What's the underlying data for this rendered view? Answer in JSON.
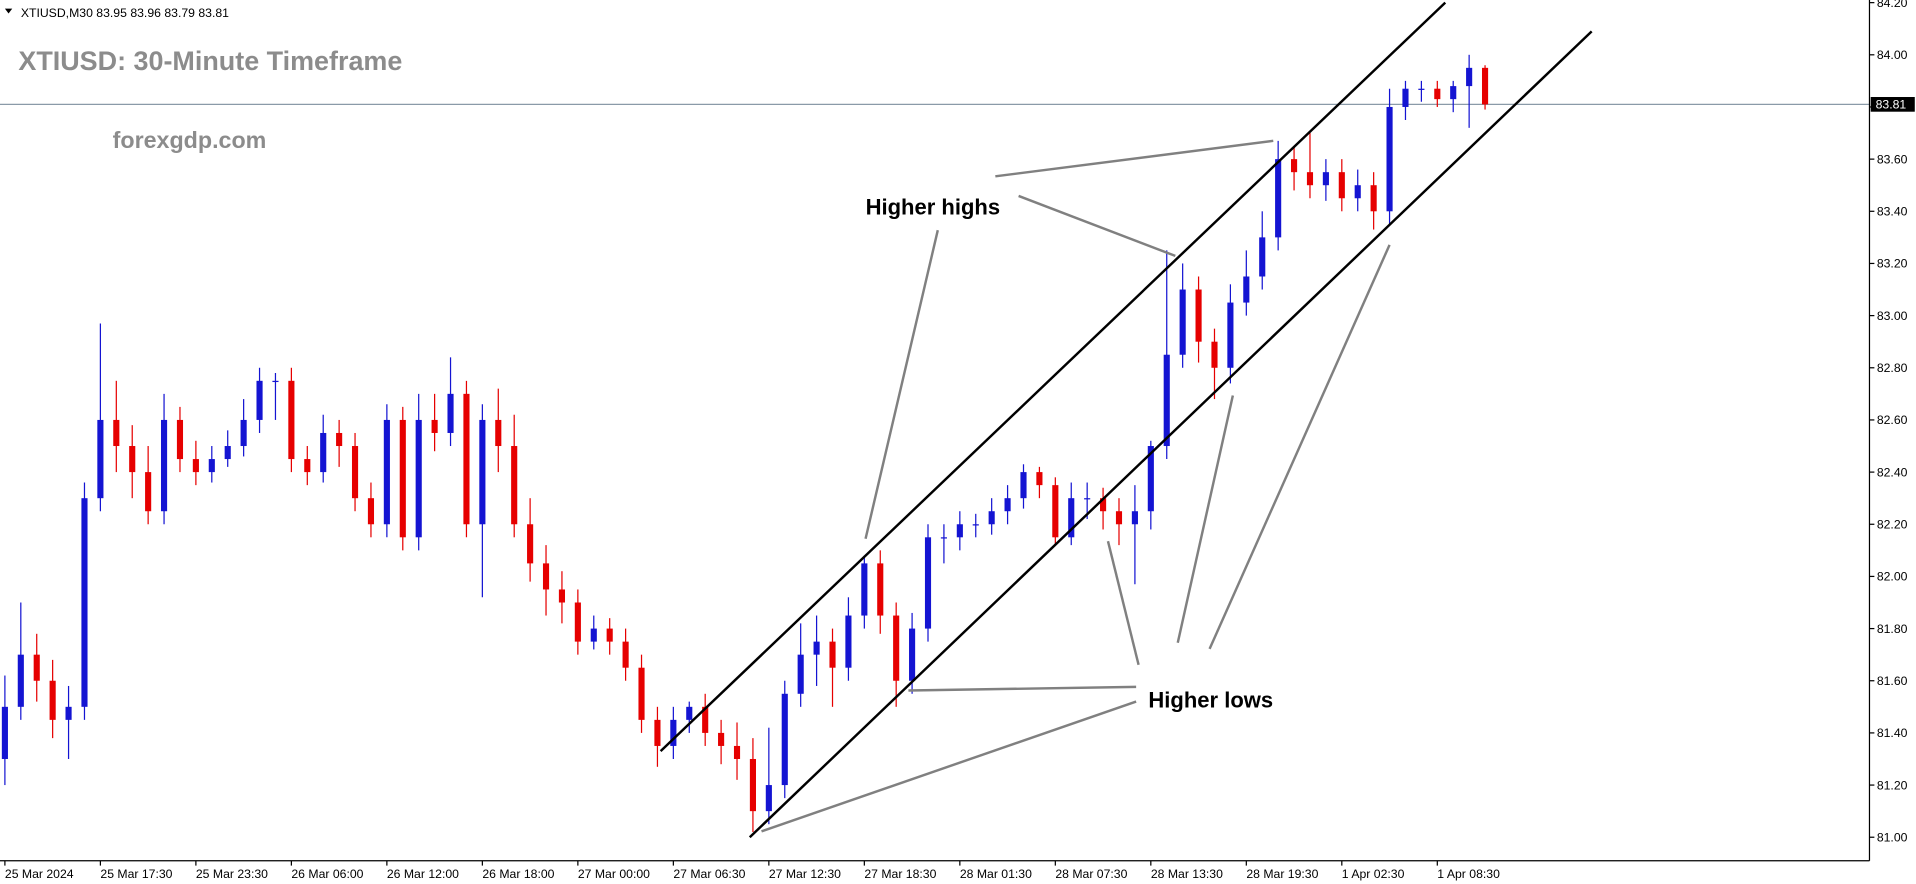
{
  "chart_data": {
    "type": "candlestick",
    "symbol": "XTIUSD,M30",
    "title": "XTIUSD: 30-Minute Timeframe",
    "watermark": "forexgdp.com",
    "categories": [
      "25 Mar 2024",
      null,
      null,
      null,
      null,
      null,
      "25 Mar 17:30",
      null,
      null,
      null,
      null,
      null,
      "25 Mar 23:30",
      null,
      null,
      null,
      null,
      null,
      "26 Mar 06:00",
      null,
      null,
      null,
      null,
      null,
      "26 Mar 12:00",
      null,
      null,
      null,
      null,
      null,
      "26 Mar 18:00",
      null,
      null,
      null,
      null,
      null,
      "27 Mar 00:00",
      null,
      null,
      null,
      null,
      null,
      "27 Mar 06:30",
      null,
      null,
      null,
      null,
      null,
      "27 Mar 12:30",
      null,
      null,
      null,
      null,
      null,
      "27 Mar 18:30",
      null,
      null,
      null,
      null,
      null,
      "28 Mar 01:30",
      null,
      null,
      null,
      null,
      null,
      "28 Mar 07:30",
      null,
      null,
      null,
      null,
      null,
      "28 Mar 13:30",
      null,
      null,
      null,
      null,
      null,
      "28 Mar 19:30",
      null,
      null,
      null,
      null,
      null,
      "1 Apr 02:30",
      null,
      null,
      null,
      null,
      null,
      "1 Apr 08:30",
      null,
      null,
      null
    ],
    "open": [
      81.3,
      81.5,
      81.7,
      81.6,
      81.45,
      81.5,
      82.3,
      82.6,
      82.5,
      82.4,
      82.25,
      82.6,
      82.45,
      82.4,
      82.45,
      82.5,
      82.6,
      82.75,
      82.75,
      82.45,
      82.4,
      82.55,
      82.5,
      82.3,
      82.2,
      82.6,
      82.15,
      82.6,
      82.55,
      82.7,
      82.2,
      82.6,
      82.5,
      82.2,
      82.05,
      81.95,
      81.9,
      81.75,
      81.8,
      81.75,
      81.65,
      81.45,
      81.35,
      81.45,
      81.5,
      81.4,
      81.35,
      81.3,
      81.1,
      81.2,
      81.55,
      81.7,
      81.75,
      81.65,
      81.85,
      82.05,
      81.85,
      81.6,
      81.8,
      82.15,
      82.15,
      82.2,
      82.2,
      82.25,
      82.3,
      82.4,
      82.35,
      82.15,
      82.3,
      82.3,
      82.25,
      82.2,
      82.25,
      82.5,
      82.85,
      83.1,
      82.9,
      82.8,
      83.05,
      83.15,
      83.3,
      83.6,
      83.55,
      83.5,
      83.55,
      83.45,
      83.5,
      83.4,
      83.8,
      83.87,
      83.87,
      83.83,
      83.88,
      83.95
    ],
    "high": [
      81.62,
      81.9,
      81.78,
      81.68,
      81.58,
      82.36,
      82.97,
      82.75,
      82.58,
      82.5,
      82.7,
      82.65,
      82.52,
      82.5,
      82.56,
      82.68,
      82.8,
      82.78,
      82.8,
      82.5,
      82.62,
      82.6,
      82.55,
      82.36,
      82.66,
      82.65,
      82.7,
      82.7,
      82.84,
      82.75,
      82.66,
      82.72,
      82.62,
      82.3,
      82.12,
      82.02,
      81.95,
      81.85,
      81.84,
      81.8,
      81.7,
      81.5,
      81.5,
      81.52,
      81.55,
      81.45,
      81.44,
      81.38,
      81.42,
      81.6,
      81.82,
      81.85,
      81.8,
      81.92,
      82.08,
      82.1,
      81.9,
      81.86,
      82.2,
      82.2,
      82.25,
      82.24,
      82.3,
      82.35,
      82.43,
      82.42,
      82.38,
      82.36,
      82.36,
      82.34,
      82.3,
      82.35,
      82.52,
      83.25,
      83.2,
      83.15,
      82.95,
      83.12,
      83.25,
      83.4,
      83.67,
      83.65,
      83.7,
      83.6,
      83.6,
      83.56,
      83.55,
      83.87,
      83.9,
      83.9,
      83.9,
      83.9,
      84.0,
      83.96
    ],
    "low": [
      81.2,
      81.45,
      81.52,
      81.38,
      81.3,
      81.45,
      82.25,
      82.4,
      82.3,
      82.2,
      82.2,
      82.4,
      82.35,
      82.36,
      82.42,
      82.46,
      82.55,
      82.6,
      82.4,
      82.35,
      82.36,
      82.42,
      82.25,
      82.15,
      82.15,
      82.1,
      82.1,
      82.48,
      82.5,
      82.15,
      81.92,
      82.4,
      82.15,
      81.98,
      81.85,
      81.82,
      81.7,
      81.72,
      81.7,
      81.6,
      81.4,
      81.27,
      81.3,
      81.4,
      81.35,
      81.28,
      81.22,
      81.02,
      81.05,
      81.15,
      81.5,
      81.58,
      81.5,
      81.6,
      81.8,
      81.78,
      81.5,
      81.55,
      81.75,
      82.05,
      82.1,
      82.15,
      82.16,
      82.2,
      82.26,
      82.3,
      82.12,
      82.12,
      82.22,
      82.18,
      82.12,
      81.97,
      82.18,
      82.45,
      82.8,
      82.82,
      82.68,
      82.74,
      83.0,
      83.1,
      83.25,
      83.48,
      83.45,
      83.44,
      83.4,
      83.4,
      83.33,
      83.35,
      83.75,
      83.82,
      83.8,
      83.78,
      83.72,
      83.79
    ],
    "close": [
      81.5,
      81.7,
      81.6,
      81.45,
      81.5,
      82.3,
      82.6,
      82.5,
      82.4,
      82.25,
      82.6,
      82.45,
      82.4,
      82.45,
      82.5,
      82.6,
      82.75,
      82.75,
      82.45,
      82.4,
      82.55,
      82.5,
      82.3,
      82.2,
      82.6,
      82.15,
      82.6,
      82.55,
      82.7,
      82.2,
      82.6,
      82.5,
      82.2,
      82.05,
      81.95,
      81.9,
      81.75,
      81.8,
      81.75,
      81.65,
      81.45,
      81.35,
      81.45,
      81.5,
      81.4,
      81.35,
      81.3,
      81.1,
      81.2,
      81.55,
      81.7,
      81.75,
      81.65,
      81.85,
      82.05,
      81.85,
      81.6,
      81.8,
      82.15,
      82.15,
      82.2,
      82.2,
      82.25,
      82.3,
      82.4,
      82.35,
      82.15,
      82.3,
      82.3,
      82.25,
      82.2,
      82.25,
      82.5,
      82.85,
      83.1,
      82.9,
      82.8,
      83.05,
      83.15,
      83.3,
      83.6,
      83.55,
      83.5,
      83.55,
      83.45,
      83.5,
      83.4,
      83.8,
      83.87,
      83.87,
      83.83,
      83.88,
      83.95,
      83.81
    ],
    "up_color": "#1414d2",
    "down_color": "#e60000",
    "ylim": [
      80.91,
      84.21
    ],
    "yticks": [
      {
        "value": 81.0,
        "label": "81.00"
      },
      {
        "value": 81.2,
        "label": "81.20"
      },
      {
        "value": 81.4,
        "label": "81.40"
      },
      {
        "value": 81.6,
        "label": "81.60"
      },
      {
        "value": 81.8,
        "label": "81.80"
      },
      {
        "value": 82.0,
        "label": "82.00"
      },
      {
        "value": 82.2,
        "label": "82.20"
      },
      {
        "value": 82.4,
        "label": "82.40"
      },
      {
        "value": 82.6,
        "label": "82.60"
      },
      {
        "value": 82.8,
        "label": "82.80"
      },
      {
        "value": 83.0,
        "label": "83.00"
      },
      {
        "value": 83.2,
        "label": "83.20"
      },
      {
        "value": 83.4,
        "label": "83.40"
      },
      {
        "value": 83.6,
        "label": "83.60"
      },
      {
        "value": 83.8,
        "label": "83.80"
      },
      {
        "value": 84.0,
        "label": "84.00"
      },
      {
        "value": 84.2,
        "label": "84.20"
      }
    ],
    "grid": false,
    "current_price": 83.81,
    "trendlines": [
      {
        "x": [
          41.2,
          90.5
        ],
        "y": [
          81.33,
          84.2
        ]
      },
      {
        "x": [
          46.8,
          99.7
        ],
        "y": [
          81.0,
          84.09
        ]
      }
    ],
    "annotations": [
      "Higher highs",
      "Higher lows"
    ]
  }
}
